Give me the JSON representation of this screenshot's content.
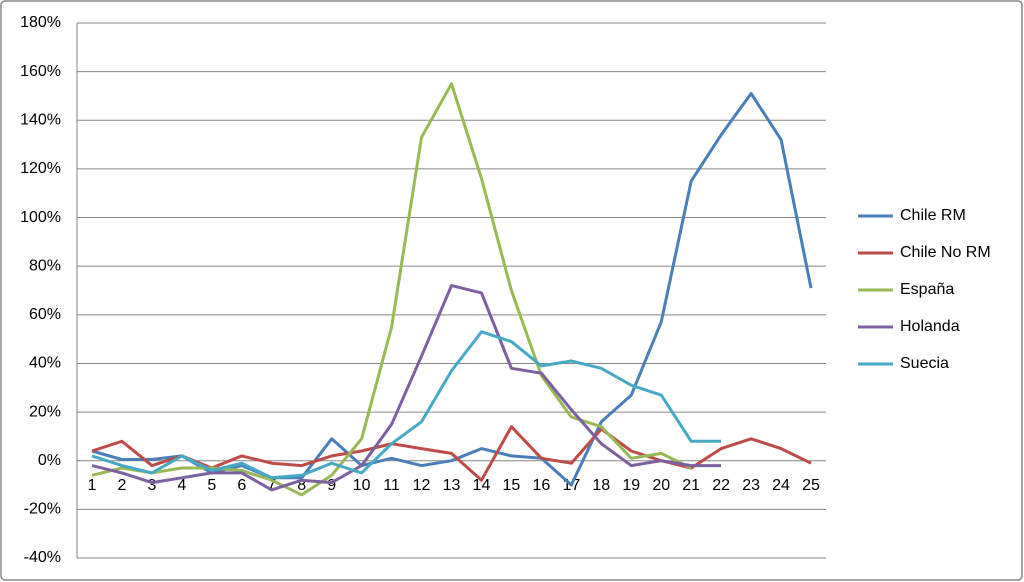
{
  "chart_data": {
    "type": "line",
    "categories": [
      "1",
      "2",
      "3",
      "4",
      "5",
      "6",
      "7",
      "8",
      "9",
      "10",
      "11",
      "12",
      "13",
      "14",
      "15",
      "16",
      "17",
      "18",
      "19",
      "20",
      "21",
      "22",
      "23",
      "24",
      "25"
    ],
    "series": [
      {
        "name": "Chile RM",
        "color": "#4a7ebb",
        "values": [
          4,
          0.5,
          0.5,
          2,
          -5,
          -2,
          -7,
          -7,
          9,
          -2,
          1,
          -2,
          0,
          5,
          2,
          1,
          -10,
          16,
          27,
          57,
          115,
          134,
          151,
          132,
          71
        ]
      },
      {
        "name": "Chile No RM",
        "color": "#be4b48",
        "values": [
          4,
          8,
          -2,
          2,
          -3,
          2,
          -1,
          -2,
          2,
          4,
          7,
          5,
          3,
          -8,
          14,
          1,
          -1,
          13,
          4,
          0,
          -3,
          5,
          9,
          5,
          -1
        ]
      },
      {
        "name": "España",
        "color": "#98b954",
        "values": [
          -6,
          -3,
          -5,
          -3,
          -3,
          -4,
          -8,
          -14,
          -6,
          9,
          55,
          133,
          155,
          116,
          70,
          35,
          18,
          14,
          1,
          3,
          -3,
          null,
          null,
          null,
          null
        ]
      },
      {
        "name": "Holanda",
        "color": "#7d60a0",
        "values": [
          -2,
          -5,
          -9,
          -7,
          -5,
          -5,
          -12,
          -8,
          -9,
          -2,
          15,
          43,
          72,
          69,
          38,
          36,
          21,
          7,
          -2,
          0,
          -2,
          -2,
          null,
          null,
          null
        ]
      },
      {
        "name": "Suecia",
        "color": "#46aac5",
        "values": [
          2,
          -2,
          -5,
          2,
          -4,
          -1,
          -7,
          -6,
          -1,
          -5,
          7,
          16,
          37,
          53,
          49,
          39,
          41,
          38,
          31,
          27,
          8,
          8,
          null,
          null,
          null
        ]
      }
    ],
    "ylim": [
      -40,
      180
    ],
    "yticks": [
      {
        "value": -40,
        "label": "-40%"
      },
      {
        "value": -20,
        "label": "-20%"
      },
      {
        "value": 0,
        "label": "0%"
      },
      {
        "value": 20,
        "label": "20%"
      },
      {
        "value": 40,
        "label": "40%"
      },
      {
        "value": 60,
        "label": "60%"
      },
      {
        "value": 80,
        "label": "80%"
      },
      {
        "value": 100,
        "label": "100%"
      },
      {
        "value": 120,
        "label": "120%"
      },
      {
        "value": 140,
        "label": "140%"
      },
      {
        "value": 160,
        "label": "160%"
      },
      {
        "value": 180,
        "label": "180%"
      }
    ],
    "grid": true,
    "legend": "right"
  }
}
